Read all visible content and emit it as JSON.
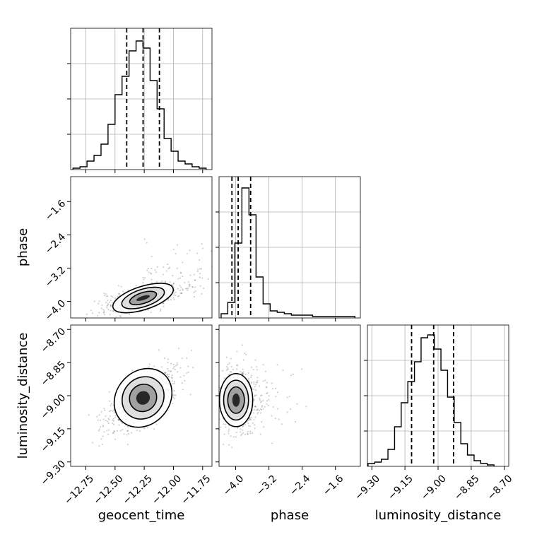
{
  "chart_data": [
    {
      "type": "histogram",
      "panel": "geocent_time",
      "x_range": [
        -12.88,
        -11.67
      ],
      "y_range": [
        0,
        1.0
      ],
      "grid": true,
      "bin_edges": [
        -12.86,
        -12.8,
        -12.74,
        -12.68,
        -12.62,
        -12.56,
        -12.5,
        -12.44,
        -12.38,
        -12.32,
        -12.26,
        -12.2,
        -12.14,
        -12.08,
        -12.02,
        -11.96,
        -11.9,
        -11.84,
        -11.78,
        -11.72
      ],
      "counts": [
        0.01,
        0.02,
        0.06,
        0.1,
        0.18,
        0.32,
        0.53,
        0.66,
        0.84,
        0.91,
        0.86,
        0.63,
        0.43,
        0.22,
        0.13,
        0.06,
        0.04,
        0.02,
        0.01
      ],
      "quantiles": [
        -12.4,
        -12.26,
        -12.12
      ]
    },
    {
      "type": "scatter-density",
      "panel": "phase vs geocent_time",
      "x_range": [
        -12.88,
        -11.67
      ],
      "y_range": [
        -4.4,
        -1.0
      ],
      "contour_center": [
        -12.26,
        -3.92
      ],
      "contour_widths": [
        [
          0.06,
          0.05
        ],
        [
          0.12,
          0.13
        ],
        [
          0.19,
          0.21
        ],
        [
          0.27,
          0.28
        ]
      ]
    },
    {
      "type": "histogram",
      "panel": "phase",
      "x_range": [
        -4.4,
        -1.0
      ],
      "y_range": [
        0,
        1.0
      ],
      "grid": true,
      "bin_edges": [
        -4.35,
        -4.19,
        -4.02,
        -3.85,
        -3.68,
        -3.51,
        -3.34,
        -3.17,
        -3.0,
        -2.83,
        -2.66,
        -2.49,
        -2.32,
        -2.15,
        -1.98,
        -1.81,
        -1.64,
        -1.47,
        -1.3,
        -1.13
      ],
      "counts": [
        0.03,
        0.11,
        0.53,
        0.92,
        0.73,
        0.29,
        0.1,
        0.05,
        0.04,
        0.03,
        0.02,
        0.02,
        0.02,
        0.01,
        0.01,
        0.01,
        0.01,
        0.01,
        0.01
      ],
      "quantiles": [
        -4.09,
        -3.94,
        -3.64
      ]
    },
    {
      "type": "scatter-density",
      "panel": "luminosity_distance vs geocent_time",
      "x_range": [
        -12.88,
        -11.67
      ],
      "y_range": [
        -9.32,
        -8.68
      ],
      "contour_center": [
        -12.26,
        -9.01
      ],
      "contour_widths": [
        [
          0.06,
          0.03
        ],
        [
          0.12,
          0.06
        ],
        [
          0.19,
          0.09
        ],
        [
          0.27,
          0.12
        ]
      ]
    },
    {
      "type": "scatter-density",
      "panel": "luminosity_distance vs phase",
      "x_range": [
        -4.4,
        -1.0
      ],
      "y_range": [
        -9.32,
        -8.68
      ],
      "contour_center": [
        -3.99,
        -9.02
      ],
      "contour_widths": [
        [
          0.09,
          0.03
        ],
        [
          0.2,
          0.06
        ],
        [
          0.3,
          0.09
        ],
        [
          0.4,
          0.12
        ]
      ]
    },
    {
      "type": "histogram",
      "panel": "luminosity_distance",
      "x_range": [
        -9.32,
        -8.68
      ],
      "y_range": [
        0,
        1.0
      ],
      "grid": true,
      "bin_edges": [
        -9.317,
        -9.287,
        -9.257,
        -9.227,
        -9.197,
        -9.167,
        -9.137,
        -9.107,
        -9.077,
        -9.047,
        -9.017,
        -8.987,
        -8.957,
        -8.927,
        -8.897,
        -8.867,
        -8.837,
        -8.807,
        -8.777,
        -8.747
      ],
      "counts": [
        0.02,
        0.03,
        0.05,
        0.12,
        0.28,
        0.45,
        0.6,
        0.74,
        0.91,
        0.93,
        0.83,
        0.68,
        0.49,
        0.31,
        0.16,
        0.08,
        0.04,
        0.02,
        0.01
      ],
      "quantiles": [
        -9.12,
        -9.02,
        -8.93
      ]
    }
  ],
  "axes": {
    "geocent_time": {
      "label": "geocent_time",
      "ticks": [
        -12.75,
        -12.5,
        -12.25,
        -12.0,
        -11.75
      ],
      "tick_labels": [
        "−12.75",
        "−12.50",
        "−12.25",
        "−12.00",
        "−11.75"
      ]
    },
    "phase": {
      "label": "phase",
      "ticks": [
        -4.0,
        -3.2,
        -2.4,
        -1.6
      ],
      "tick_labels": [
        "−4.0",
        "−3.2",
        "−2.4",
        "−1.6"
      ]
    },
    "luminosity_distance": {
      "label": "luminosity_distance",
      "ticks": [
        -9.3,
        -9.15,
        -9.0,
        -8.85,
        -8.7
      ],
      "tick_labels": [
        "−9.30",
        "−9.15",
        "−9.00",
        "−8.85",
        "−8.70"
      ]
    }
  }
}
